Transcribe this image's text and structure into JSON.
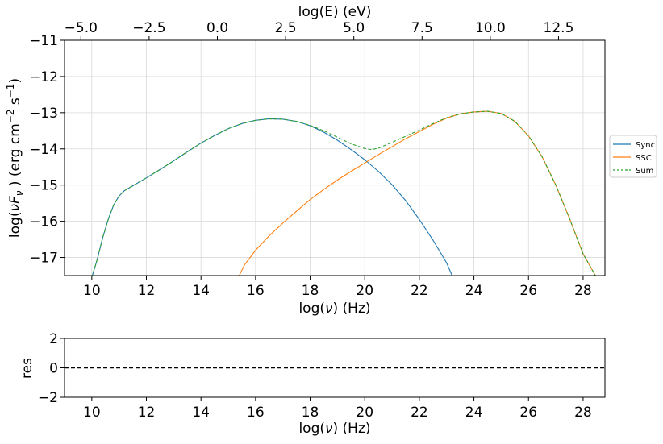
{
  "chart_data": [
    {
      "type": "line",
      "panel": "main",
      "xlabel": "log(ν)  (Hz)",
      "xlabel_parts": [
        "log(",
        "ν",
        ")  (Hz)"
      ],
      "ylabel": "log(νFν )  (erg cm⁻²  s⁻¹)",
      "ylabel_parts": {
        "a": "log(",
        "nu": "ν",
        "F": "F",
        "sub": "ν",
        "b": " )  (erg cm",
        "sup2": "−2",
        "c": "  s",
        "sup1": "−1",
        "d": ")"
      },
      "top_xlabel": "log(E) (eV)",
      "xlim": [
        9.0,
        28.8
      ],
      "ylim": [
        -17.5,
        -11.0
      ],
      "top_xlim": [
        -5.6,
        14.2
      ],
      "grid": true,
      "legend_position": "right",
      "xticks": [
        10,
        12,
        14,
        16,
        18,
        20,
        22,
        24,
        26,
        28
      ],
      "xtick_labels": [
        "10",
        "12",
        "14",
        "16",
        "18",
        "20",
        "22",
        "24",
        "26",
        "28"
      ],
      "yticks": [
        -17,
        -16,
        -15,
        -14,
        -13,
        -12,
        -11
      ],
      "ytick_labels": [
        "−17",
        "−16",
        "−15",
        "−14",
        "−13",
        "−12",
        "−11"
      ],
      "top_xticks": [
        -5.0,
        -2.5,
        0.0,
        2.5,
        5.0,
        7.5,
        10.0,
        12.5
      ],
      "top_xtick_labels": [
        "−5.0",
        "−2.5",
        "0.0",
        "2.5",
        "5.0",
        "7.5",
        "10.0",
        "12.5"
      ],
      "series": [
        {
          "name": "Sync",
          "color": "#1f77b4",
          "style": "solid",
          "x": [
            10.0,
            10.2,
            10.4,
            10.6,
            10.8,
            11.0,
            11.2,
            11.5,
            12.0,
            12.5,
            13.0,
            13.5,
            14.0,
            14.5,
            15.0,
            15.5,
            16.0,
            16.5,
            17.0,
            17.5,
            18.0,
            18.5,
            19.0,
            19.5,
            20.0,
            20.5,
            21.0,
            21.5,
            22.0,
            22.5,
            23.0,
            23.2
          ],
          "y": [
            -17.55,
            -17.05,
            -16.45,
            -15.95,
            -15.55,
            -15.3,
            -15.15,
            -15.02,
            -14.8,
            -14.57,
            -14.33,
            -14.08,
            -13.84,
            -13.63,
            -13.44,
            -13.3,
            -13.21,
            -13.17,
            -13.18,
            -13.24,
            -13.36,
            -13.54,
            -13.76,
            -14.02,
            -14.3,
            -14.62,
            -14.99,
            -15.43,
            -15.95,
            -16.52,
            -17.15,
            -17.5
          ]
        },
        {
          "name": "SSC",
          "color": "#ff7f0e",
          "style": "solid",
          "x": [
            15.4,
            15.6,
            16.0,
            16.5,
            17.0,
            17.5,
            18.0,
            18.5,
            19.0,
            19.5,
            20.0,
            20.5,
            21.0,
            21.5,
            22.0,
            22.5,
            23.0,
            23.5,
            24.0,
            24.5,
            25.0,
            25.5,
            26.0,
            26.5,
            27.0,
            27.5,
            28.0,
            28.3,
            28.45
          ],
          "y": [
            -17.5,
            -17.2,
            -16.8,
            -16.4,
            -16.05,
            -15.72,
            -15.4,
            -15.12,
            -14.86,
            -14.62,
            -14.39,
            -14.16,
            -13.94,
            -13.72,
            -13.52,
            -13.32,
            -13.15,
            -13.03,
            -12.98,
            -12.96,
            -13.02,
            -13.24,
            -13.64,
            -14.22,
            -15.0,
            -15.92,
            -16.9,
            -17.3,
            -17.5
          ]
        },
        {
          "name": "Sum",
          "color": "#2ca02c",
          "style": "dashed",
          "x": [
            10.0,
            10.2,
            10.4,
            10.6,
            10.8,
            11.0,
            11.2,
            11.5,
            12.0,
            12.5,
            13.0,
            13.5,
            14.0,
            14.5,
            15.0,
            15.5,
            16.0,
            16.5,
            17.0,
            17.5,
            18.0,
            18.5,
            19.0,
            19.5,
            20.0,
            20.25,
            20.5,
            21.0,
            21.5,
            22.0,
            22.5,
            23.0,
            23.5,
            24.0,
            24.5,
            25.0,
            25.5,
            26.0,
            26.5,
            27.0,
            27.5,
            28.0,
            28.3,
            28.45
          ],
          "y": [
            -17.55,
            -17.05,
            -16.45,
            -15.95,
            -15.55,
            -15.3,
            -15.15,
            -15.02,
            -14.8,
            -14.57,
            -14.33,
            -14.08,
            -13.84,
            -13.63,
            -13.44,
            -13.3,
            -13.21,
            -13.17,
            -13.18,
            -13.24,
            -13.35,
            -13.5,
            -13.68,
            -13.86,
            -13.99,
            -14.02,
            -13.98,
            -13.82,
            -13.65,
            -13.48,
            -13.3,
            -13.14,
            -13.03,
            -12.98,
            -12.96,
            -13.02,
            -13.24,
            -13.64,
            -14.22,
            -15.0,
            -15.92,
            -16.9,
            -17.3,
            -17.5
          ]
        }
      ]
    },
    {
      "type": "line",
      "panel": "residuals",
      "xlabel": "log(ν)  (Hz)",
      "xlabel_parts": [
        "log(",
        "ν",
        ")  (Hz)"
      ],
      "ylabel": "res",
      "xlim": [
        9.0,
        28.8
      ],
      "ylim": [
        -2,
        2
      ],
      "grid": false,
      "xticks": [
        10,
        12,
        14,
        16,
        18,
        20,
        22,
        24,
        26,
        28
      ],
      "xtick_labels": [
        "10",
        "12",
        "14",
        "16",
        "18",
        "20",
        "22",
        "24",
        "26",
        "28"
      ],
      "yticks": [
        -2,
        0,
        2
      ],
      "ytick_labels": [
        "−2",
        "0",
        "2"
      ],
      "reference_line": {
        "y": 0,
        "color": "#000000",
        "style": "dashed"
      }
    }
  ]
}
